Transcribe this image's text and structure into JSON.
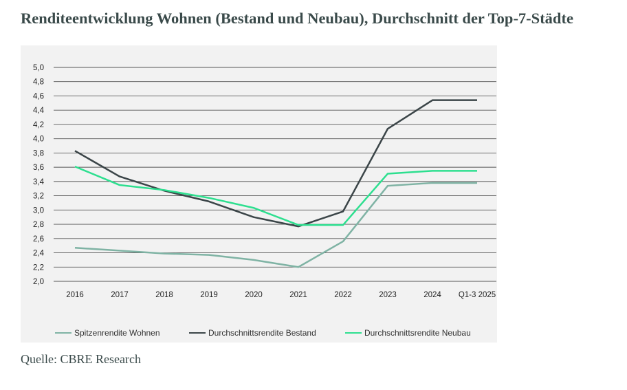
{
  "title": "Renditeentwicklung Wohnen (Bestand und Neubau), Durchschnitt der Top-7-Städte",
  "source": "Quelle: CBRE Research",
  "chart_data": {
    "type": "line",
    "categories": [
      "2016",
      "2017",
      "2018",
      "2019",
      "2020",
      "2021",
      "2022",
      "2023",
      "2024",
      "Q1-3 2025"
    ],
    "y_ticks": [
      "2,0",
      "2,2",
      "2,4",
      "2,6",
      "2,8",
      "3,0",
      "3,2",
      "3,4",
      "3,6",
      "3,8",
      "4,0",
      "4,2",
      "4,4",
      "4,6",
      "4,8",
      "5,0"
    ],
    "ylim": [
      2.0,
      5.0
    ],
    "grid": "horizontal",
    "legend_position": "bottom",
    "series": [
      {
        "name": "Spitzenrendite Wohnen",
        "color": "#7fb3a4",
        "values": [
          2.47,
          2.43,
          2.39,
          2.37,
          2.3,
          2.2,
          2.56,
          3.34,
          3.38,
          3.38
        ]
      },
      {
        "name": "Durchschnittsrendite Bestand",
        "color": "#3b4548",
        "values": [
          3.83,
          3.47,
          3.27,
          3.12,
          2.9,
          2.77,
          2.98,
          4.14,
          4.54,
          4.54
        ]
      },
      {
        "name": "Durchschnittsrendite Neubau",
        "color": "#2ddf8f",
        "values": [
          3.61,
          3.35,
          3.28,
          3.17,
          3.03,
          2.79,
          2.79,
          3.51,
          3.55,
          3.55
        ]
      }
    ]
  }
}
